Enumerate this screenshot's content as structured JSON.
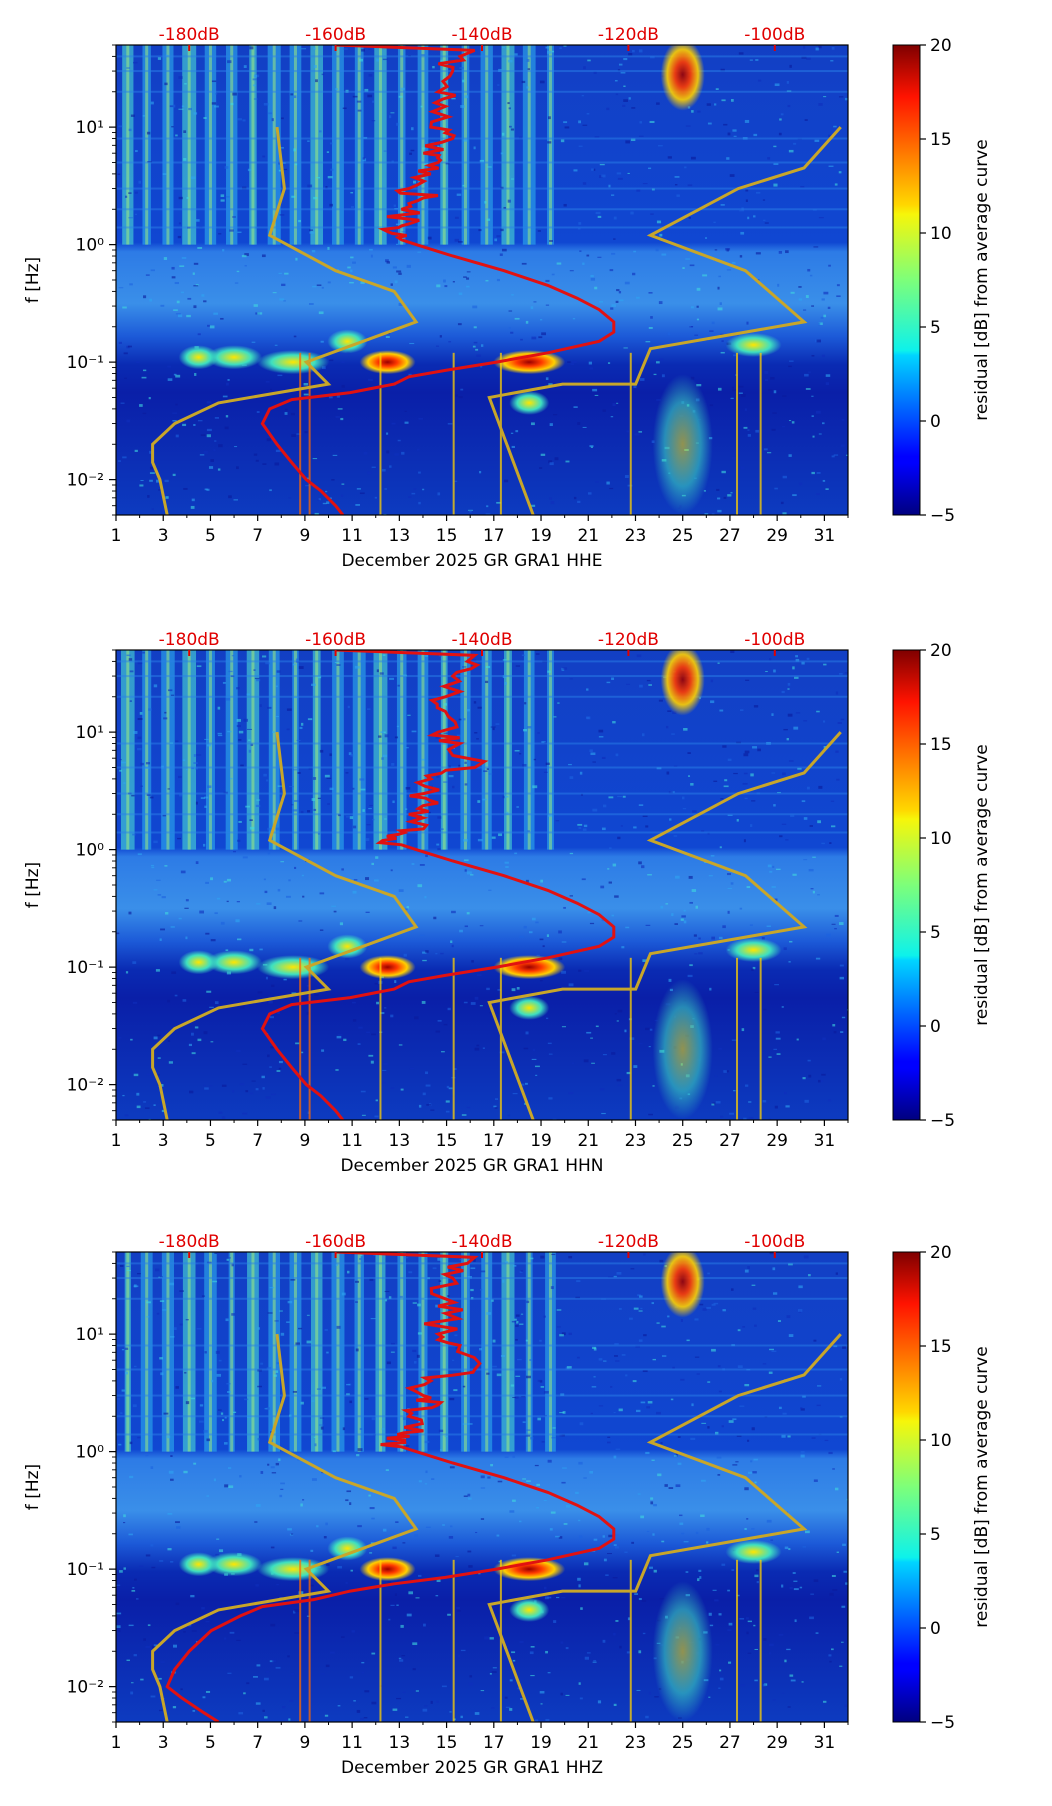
{
  "figure": {
    "description_free": true
  },
  "colors": {
    "db_label": "#e00000",
    "red_curve": "#e11111",
    "model_curve": "#c8a62a",
    "axis": "#000000"
  },
  "colorbar": {
    "label": "residual [dB] from average curve",
    "min": -5,
    "max": 20,
    "ticks": [
      "20",
      "15",
      "10",
      "5",
      "0",
      "−5"
    ],
    "tick_values": [
      20,
      15,
      10,
      5,
      0,
      -5
    ],
    "colormap": "jet"
  },
  "shared": {
    "x_ticks": [
      "1",
      "3",
      "5",
      "7",
      "9",
      "11",
      "13",
      "15",
      "17",
      "19",
      "21",
      "23",
      "25",
      "27",
      "29",
      "31"
    ],
    "x_tick_values": [
      1,
      3,
      5,
      7,
      9,
      11,
      13,
      15,
      17,
      19,
      21,
      23,
      25,
      27,
      29,
      31
    ],
    "xlim": [
      1,
      32
    ],
    "ylabel": "f [Hz]",
    "y_ticks": [
      "10¹",
      "10⁰",
      "10⁻¹",
      "10⁻²"
    ],
    "y_tick_values": [
      10,
      1,
      0.1,
      0.01
    ],
    "ylim": [
      0.005,
      50
    ],
    "db_labels": [
      "-180dB",
      "-160dB",
      "-140dB",
      "-120dB",
      "-100dB"
    ],
    "db_values": [
      -180,
      -160,
      -140,
      -120,
      -100
    ],
    "db_range": [
      -190,
      -90
    ]
  },
  "chart_data": [
    {
      "type": "heatmap",
      "xlabel": "December 2025 GR GRA1  HHE",
      "channel": "HHE",
      "bright_band_days": [
        1.5,
        2.3,
        3.2,
        4.1,
        5.0,
        5.9,
        6.8,
        7.7,
        8.6,
        9.5,
        10.4,
        11.3,
        12.2,
        13.1,
        14.0,
        14.9,
        15.8,
        16.7,
        17.6,
        18.5,
        19.4
      ],
      "red_curve": {
        "name": "PSD (dB)",
        "points": [
          [
            50,
            -160
          ],
          [
            45,
            -141
          ],
          [
            40,
            -143
          ],
          [
            30,
            -144
          ],
          [
            20,
            -146
          ],
          [
            15,
            -145
          ],
          [
            10,
            -147
          ],
          [
            8,
            -144
          ],
          [
            6,
            -148
          ],
          [
            5,
            -146
          ],
          [
            4,
            -147
          ],
          [
            3,
            -150
          ],
          [
            2.5,
            -148
          ],
          [
            2,
            -151
          ],
          [
            1.5,
            -150
          ],
          [
            1.3,
            -153
          ],
          [
            1.1,
            -151
          ],
          [
            1.0,
            -149
          ],
          [
            0.8,
            -144
          ],
          [
            0.6,
            -137
          ],
          [
            0.45,
            -131
          ],
          [
            0.35,
            -127
          ],
          [
            0.28,
            -124
          ],
          [
            0.22,
            -122
          ],
          [
            0.18,
            -122
          ],
          [
            0.15,
            -124
          ],
          [
            0.12,
            -131
          ],
          [
            0.1,
            -138
          ],
          [
            0.085,
            -145
          ],
          [
            0.075,
            -150
          ],
          [
            0.065,
            -152
          ],
          [
            0.055,
            -158
          ],
          [
            0.048,
            -166
          ],
          [
            0.04,
            -169
          ],
          [
            0.03,
            -170
          ],
          [
            0.02,
            -168
          ],
          [
            0.014,
            -166
          ],
          [
            0.01,
            -164
          ],
          [
            0.008,
            -162
          ],
          [
            0.006,
            -160
          ],
          [
            0.005,
            -159
          ]
        ]
      },
      "model_curves": [
        {
          "name": "low noise model",
          "points": [
            [
              10,
              -168
            ],
            [
              3,
              -167
            ],
            [
              1.2,
              -169
            ],
            [
              0.6,
              -160
            ],
            [
              0.4,
              -152
            ],
            [
              0.22,
              -149
            ],
            [
              0.1,
              -164
            ],
            [
              0.065,
              -161
            ],
            [
              0.045,
              -176
            ],
            [
              0.03,
              -182
            ],
            [
              0.02,
              -185
            ],
            [
              0.014,
              -185
            ],
            [
              0.01,
              -184
            ],
            [
              0.005,
              -183
            ]
          ]
        },
        {
          "name": "high noise model",
          "points": [
            [
              10,
              -91
            ],
            [
              4.5,
              -96
            ],
            [
              3,
              -105
            ],
            [
              1.2,
              -117
            ],
            [
              0.6,
              -104
            ],
            [
              0.22,
              -96
            ],
            [
              0.13,
              -117
            ],
            [
              0.065,
              -119
            ],
            [
              0.065,
              -129
            ],
            [
              0.05,
              -139
            ],
            [
              0.005,
              -133
            ]
          ]
        }
      ]
    },
    {
      "type": "heatmap",
      "xlabel": "December 2025 GR GRA1  HHN",
      "channel": "HHN",
      "bright_band_days": [
        1.5,
        2.3,
        3.2,
        4.1,
        5.0,
        5.9,
        6.8,
        7.7,
        8.6,
        9.5,
        10.4,
        11.3,
        12.2,
        13.1,
        14.0,
        14.9,
        15.8,
        16.7,
        17.6,
        18.5,
        19.4
      ],
      "red_curve": {
        "name": "PSD (dB)",
        "points": [
          [
            50,
            -160
          ],
          [
            45,
            -141
          ],
          [
            40,
            -142
          ],
          [
            30,
            -144
          ],
          [
            20,
            -145
          ],
          [
            15,
            -145
          ],
          [
            10,
            -146
          ],
          [
            8,
            -143
          ],
          [
            5,
            -141
          ],
          [
            4,
            -147
          ],
          [
            3,
            -148
          ],
          [
            2.5,
            -146
          ],
          [
            2,
            -150
          ],
          [
            1.5,
            -148
          ],
          [
            1.3,
            -153
          ],
          [
            1.1,
            -151
          ],
          [
            1.0,
            -149
          ],
          [
            0.8,
            -144
          ],
          [
            0.6,
            -137
          ],
          [
            0.45,
            -131
          ],
          [
            0.35,
            -127
          ],
          [
            0.28,
            -124
          ],
          [
            0.22,
            -122
          ],
          [
            0.18,
            -122
          ],
          [
            0.15,
            -124
          ],
          [
            0.12,
            -131
          ],
          [
            0.1,
            -138
          ],
          [
            0.085,
            -145
          ],
          [
            0.075,
            -150
          ],
          [
            0.065,
            -152
          ],
          [
            0.055,
            -158
          ],
          [
            0.048,
            -166
          ],
          [
            0.04,
            -169
          ],
          [
            0.03,
            -170
          ],
          [
            0.02,
            -168
          ],
          [
            0.014,
            -166
          ],
          [
            0.01,
            -164
          ],
          [
            0.008,
            -162
          ],
          [
            0.006,
            -160
          ],
          [
            0.005,
            -159
          ]
        ]
      },
      "model_curves": [
        {
          "name": "low noise model",
          "points": [
            [
              10,
              -168
            ],
            [
              3,
              -167
            ],
            [
              1.2,
              -169
            ],
            [
              0.6,
              -160
            ],
            [
              0.4,
              -152
            ],
            [
              0.22,
              -149
            ],
            [
              0.1,
              -164
            ],
            [
              0.065,
              -161
            ],
            [
              0.045,
              -176
            ],
            [
              0.03,
              -182
            ],
            [
              0.02,
              -185
            ],
            [
              0.014,
              -185
            ],
            [
              0.01,
              -184
            ],
            [
              0.005,
              -183
            ]
          ]
        },
        {
          "name": "high noise model",
          "points": [
            [
              10,
              -91
            ],
            [
              4.5,
              -96
            ],
            [
              3,
              -105
            ],
            [
              1.2,
              -117
            ],
            [
              0.6,
              -104
            ],
            [
              0.22,
              -96
            ],
            [
              0.13,
              -117
            ],
            [
              0.065,
              -119
            ],
            [
              0.065,
              -129
            ],
            [
              0.05,
              -139
            ],
            [
              0.005,
              -133
            ]
          ]
        }
      ]
    },
    {
      "type": "heatmap",
      "xlabel": "December 2025 GR GRA1  HHZ",
      "channel": "HHZ",
      "bright_band_days": [
        1.5,
        2.3,
        3.2,
        4.1,
        5.0,
        5.9,
        6.8,
        7.7,
        8.6,
        9.5,
        10.4,
        11.3,
        12.2,
        13.1,
        14.0,
        14.9,
        15.8,
        16.7,
        17.6,
        18.5,
        19.4
      ],
      "red_curve": {
        "name": "PSD (dB)",
        "points": [
          [
            50,
            -160
          ],
          [
            45,
            -141
          ],
          [
            40,
            -142
          ],
          [
            30,
            -144
          ],
          [
            20,
            -145
          ],
          [
            15,
            -145
          ],
          [
            10,
            -146
          ],
          [
            8,
            -143
          ],
          [
            5,
            -141
          ],
          [
            4,
            -147
          ],
          [
            3,
            -148
          ],
          [
            2.5,
            -146
          ],
          [
            2,
            -150
          ],
          [
            1.5,
            -148
          ],
          [
            1.3,
            -153
          ],
          [
            1.1,
            -151
          ],
          [
            1.0,
            -149
          ],
          [
            0.8,
            -144
          ],
          [
            0.6,
            -137
          ],
          [
            0.45,
            -131
          ],
          [
            0.35,
            -127
          ],
          [
            0.28,
            -124
          ],
          [
            0.22,
            -122
          ],
          [
            0.18,
            -122
          ],
          [
            0.15,
            -124
          ],
          [
            0.12,
            -131
          ],
          [
            0.1,
            -138
          ],
          [
            0.085,
            -145
          ],
          [
            0.075,
            -152
          ],
          [
            0.065,
            -158
          ],
          [
            0.055,
            -163
          ],
          [
            0.048,
            -170
          ],
          [
            0.04,
            -173
          ],
          [
            0.03,
            -177
          ],
          [
            0.02,
            -180
          ],
          [
            0.014,
            -182
          ],
          [
            0.01,
            -183
          ],
          [
            0.008,
            -181
          ],
          [
            0.006,
            -178
          ],
          [
            0.005,
            -176
          ]
        ]
      },
      "model_curves": [
        {
          "name": "low noise model",
          "points": [
            [
              10,
              -168
            ],
            [
              3,
              -167
            ],
            [
              1.2,
              -169
            ],
            [
              0.6,
              -160
            ],
            [
              0.4,
              -152
            ],
            [
              0.22,
              -149
            ],
            [
              0.1,
              -164
            ],
            [
              0.065,
              -161
            ],
            [
              0.045,
              -176
            ],
            [
              0.03,
              -182
            ],
            [
              0.02,
              -185
            ],
            [
              0.014,
              -185
            ],
            [
              0.01,
              -184
            ],
            [
              0.005,
              -183
            ]
          ]
        },
        {
          "name": "high noise model",
          "points": [
            [
              10,
              -91
            ],
            [
              4.5,
              -96
            ],
            [
              3,
              -105
            ],
            [
              1.2,
              -117
            ],
            [
              0.6,
              -104
            ],
            [
              0.22,
              -96
            ],
            [
              0.13,
              -117
            ],
            [
              0.065,
              -119
            ],
            [
              0.065,
              -129
            ],
            [
              0.05,
              -139
            ],
            [
              0.005,
              -133
            ]
          ]
        }
      ]
    }
  ]
}
